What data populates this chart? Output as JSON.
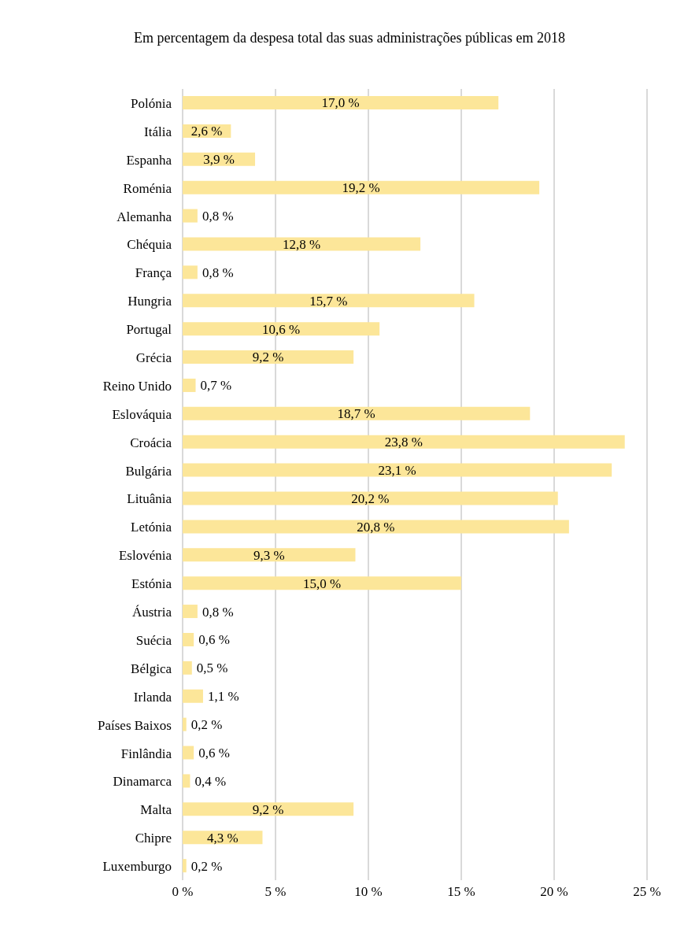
{
  "chart_data": {
    "type": "bar",
    "orientation": "horizontal",
    "title": "Em percentagem da despesa total das suas administrações públicas em 2018",
    "categories": [
      "Polónia",
      "Itália",
      "Espanha",
      "Roménia",
      "Alemanha",
      "Chéquia",
      "França",
      "Hungria",
      "Portugal",
      "Grécia",
      "Reino Unido",
      "Eslováquia",
      "Croácia",
      "Bulgária",
      "Lituânia",
      "Letónia",
      "Eslovénia",
      "Estónia",
      "Áustria",
      "Suécia",
      "Bélgica",
      "Irlanda",
      "Países Baixos",
      "Finlândia",
      "Dinamarca",
      "Malta",
      "Chipre",
      "Luxemburgo"
    ],
    "values": [
      17.0,
      2.6,
      3.9,
      19.2,
      0.8,
      12.8,
      0.8,
      15.7,
      10.6,
      9.2,
      0.7,
      18.7,
      23.8,
      23.1,
      20.2,
      20.8,
      9.3,
      15.0,
      0.8,
      0.6,
      0.5,
      1.1,
      0.2,
      0.6,
      0.4,
      9.2,
      4.3,
      0.2
    ],
    "value_labels": [
      "17,0 %",
      "2,6 %",
      "3,9 %",
      "19,2 %",
      "0,8 %",
      "12,8 %",
      "0,8 %",
      "15,7 %",
      "10,6 %",
      "9,2 %",
      "0,7 %",
      "18,7 %",
      "23,8 %",
      "23,1 %",
      "20,2 %",
      "20,8 %",
      "9,3 %",
      "15,0 %",
      "0,8 %",
      "0,6 %",
      "0,5 %",
      "1,1 %",
      "0,2 %",
      "0,6 %",
      "0,4 %",
      "9,2 %",
      "4,3 %",
      "0,2 %"
    ],
    "color": "#fce699",
    "xlim": [
      0,
      25
    ],
    "xticks": [
      {
        "value": 0,
        "label": "0 %"
      },
      {
        "value": 5,
        "label": "5 %"
      },
      {
        "value": 10,
        "label": "10 %"
      },
      {
        "value": 15,
        "label": "15 %"
      },
      {
        "value": 20,
        "label": "20 %"
      },
      {
        "value": 25,
        "label": "25 %"
      }
    ],
    "grid": "x"
  }
}
